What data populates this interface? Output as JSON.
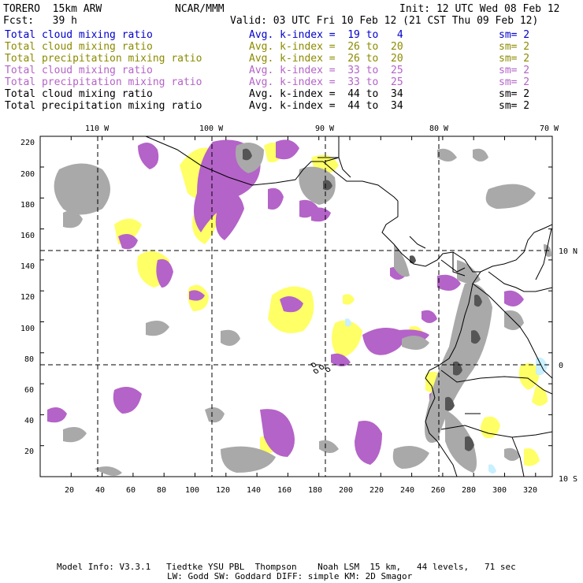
{
  "header": {
    "model": "TORERO  15km ARW",
    "org": "NCAR/MMM",
    "init": "Init: 12 UTC Wed 08 Feb 12",
    "fcst": "Fcst:   39 h",
    "valid": "Valid: 03 UTC Fri 10 Feb 12 (21 CST Thu 09 Feb 12)"
  },
  "legend": [
    {
      "field": "Total cloud mixing ratio",
      "kindex": "Avg. k-index =  19 to   4",
      "sm": "sm= 2",
      "color": "#0000cc"
    },
    {
      "field": "Total cloud mixing ratio",
      "kindex": "Avg. k-index =  26 to  20",
      "sm": "sm= 2",
      "color": "#8b8b00"
    },
    {
      "field": "Total precipitation mixing ratio",
      "kindex": "Avg. k-index =  26 to  20",
      "sm": "sm= 2",
      "color": "#8b8b00"
    },
    {
      "field": "Total cloud mixing ratio",
      "kindex": "Avg. k-index =  33 to  25",
      "sm": "sm= 2",
      "color": "#b463c8"
    },
    {
      "field": "Total precipitation mixing ratio",
      "kindex": "Avg. k-index =  33 to  25",
      "sm": "sm= 2",
      "color": "#b463c8"
    },
    {
      "field": "Total cloud mixing ratio",
      "kindex": "Avg. k-index =  44 to  34",
      "sm": "sm= 2",
      "color": "#000000"
    },
    {
      "field": "Total precipitation mixing ratio",
      "kindex": "Avg. k-index =  44 to  34",
      "sm": "sm= 2",
      "color": "#000000"
    }
  ],
  "map": {
    "lon_labels": [
      "110 W",
      "100 W",
      "90 W",
      "80 W",
      "70 W"
    ],
    "lat_labels": [
      "10 N",
      "0",
      "10 S"
    ],
    "y_ticks": [
      "220",
      "200",
      "180",
      "160",
      "140",
      "120",
      "100",
      "80",
      "60",
      "40",
      "20"
    ],
    "x_ticks": [
      "20",
      "40",
      "60",
      "80",
      "100",
      "120",
      "140",
      "160",
      "180",
      "200",
      "220",
      "240",
      "260",
      "280",
      "300",
      "320"
    ],
    "colors": {
      "gray": "#a9a9a9",
      "dark_gray": "#555555",
      "yellow": "#ffff66",
      "purple": "#b463c8",
      "light_blue": "#c8f0ff",
      "coast": "#000000"
    }
  },
  "footer": {
    "line1": "Model Info: V3.3.1   Tiedtke YSU PBL  Thompson    Noah LSM  15 km,   44 levels,   71 sec",
    "line2": "LW: Godd SW: Goddard DIFF: simple KM: 2D Smagor"
  }
}
